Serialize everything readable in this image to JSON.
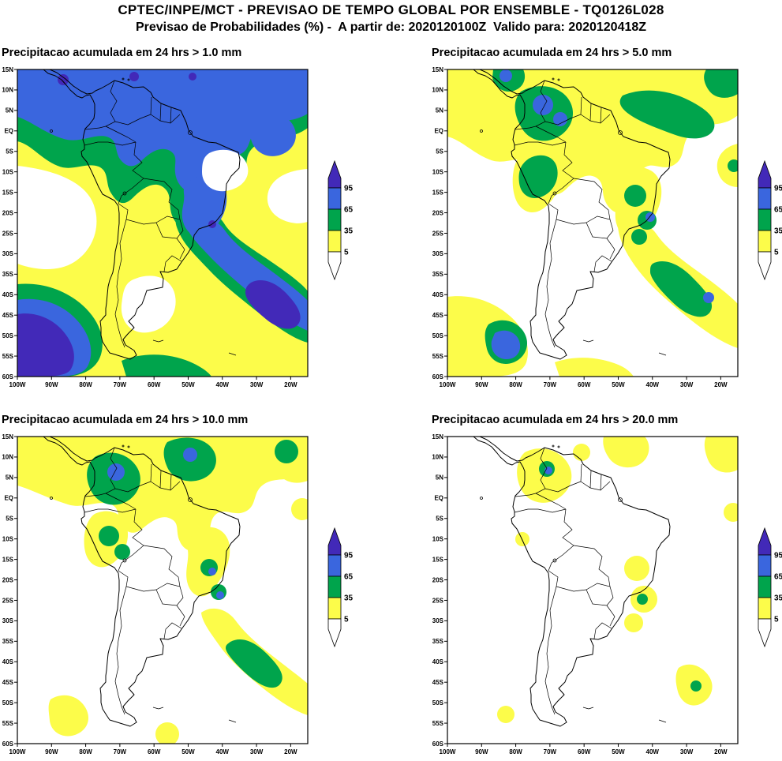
{
  "header": {
    "line1": "CPTEC/INPE/MCT - PREVISAO DE TEMPO GLOBAL POR ENSEMBLE - TQ0126L028",
    "line2": "Previsao de Probabilidades (%) -  A partir de: 2020120100Z  Valido para: 2020120418Z"
  },
  "legend": {
    "values": [
      "95",
      "65",
      "35",
      "5"
    ],
    "colors": {
      "95": "#4229b8",
      "65": "#3a66de",
      "35": "#00a44c",
      "5": "#fcfc4a",
      "below5": "#ffffff"
    }
  },
  "axes": {
    "lat": [
      "15N",
      "10N",
      "5N",
      "EQ",
      "5S",
      "10S",
      "15S",
      "20S",
      "25S",
      "30S",
      "35S",
      "40S",
      "45S",
      "50S",
      "55S",
      "60S"
    ],
    "lon": [
      "100W",
      "90W",
      "80W",
      "70W",
      "60W",
      "50W",
      "40W",
      "30W",
      "20W"
    ]
  },
  "chart_data": {
    "type": "heatmap",
    "description": "Four filled-contour maps of ensemble precipitation probability (%) over South America and adjacent oceans",
    "probability_levels_percent": [
      5,
      35,
      65,
      95
    ],
    "level_colors": [
      {
        "range": "<5",
        "color": "#ffffff"
      },
      {
        "range": "5-35",
        "color": "#fcfc4a"
      },
      {
        "range": "35-65",
        "color": "#00a44c"
      },
      {
        "range": "65-95",
        "color": "#3a66de"
      },
      {
        "range": ">95",
        "color": "#4229b8"
      }
    ],
    "x": {
      "label": "longitude",
      "ticks": [
        "100W",
        "90W",
        "80W",
        "70W",
        "60W",
        "50W",
        "40W",
        "30W",
        "20W"
      ],
      "range": [
        "100W",
        "15W"
      ]
    },
    "y": {
      "label": "latitude",
      "ticks": [
        "15N",
        "10N",
        "5N",
        "EQ",
        "5S",
        "10S",
        "15S",
        "20S",
        "25S",
        "30S",
        "35S",
        "40S",
        "45S",
        "50S",
        "55S",
        "60S"
      ],
      "range": [
        "15N",
        "60S"
      ]
    },
    "panels": [
      {
        "title": "Precipitacao acumulada em 24 hrs > 1.0 mm",
        "threshold_mm": 1.0,
        "summary": "Probabilities above 65% (blue) cover most of tropical South America and the adjacent Atlantic; above 95% (purple) cores over the far-southeast Pacific (40S-60S, 100W-75W) and along a SW-NE band in the South Atlantic; below 5% (white) over the subtropical east Pacific, central Argentina and parts of Northeast Brazil."
      },
      {
        "title": "Precipitacao acumulada em 24 hrs > 5.0 mm",
        "threshold_mm": 5.0,
        "summary": "5-35% (yellow) bands over the tropics with 35-65% (green) cores over Colombia/Venezuela, the western Amazon, central-east Brazil and a South Atlantic band; small above-65% (blue) spots over NW South America and near 55S 85W."
      },
      {
        "title": "Precipitacao acumulada em 24 hrs > 10.0 mm",
        "threshold_mm": 10.0,
        "summary": "Reduced coverage: yellow 5-35% areas with green 35-65% cores over Colombia, the ITCZ near the north coast, the western Amazon, central Brazil and a southeast Atlantic band; isolated above-65% blue spots."
      },
      {
        "title": "Precipitacao acumulada em 24 hrs > 20.0 mm",
        "threshold_mm": 20.0,
        "summary": "Mostly below 5% (white): scattered 5-35% yellow patches over NW South America, the central Brazil convective band, a small southeast Atlantic band and the far north; tiny 35-65% and above-65% cores over Colombia."
      }
    ]
  }
}
